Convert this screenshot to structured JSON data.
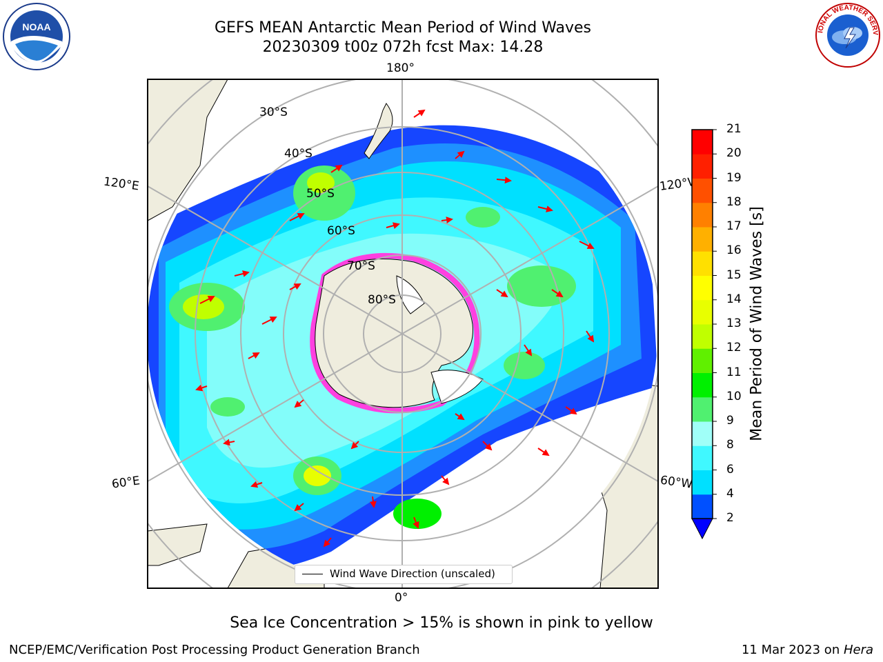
{
  "title": {
    "line1": "GEFS MEAN Antarctic Mean Period of Wind Waves",
    "line2": "20230309 t00z 072h fcst   Max: 14.28"
  },
  "logos": {
    "left": {
      "text": "NOAA",
      "icon": "noaa-logo"
    },
    "right": {
      "text": "NATIONAL WEATHER SERVICE",
      "icon": "nws-logo"
    }
  },
  "map": {
    "projection": "south-polar-stereographic",
    "lon_labels": {
      "top": "180°",
      "bottom": "0°",
      "upper_left": "120°E",
      "lower_left": "60°E",
      "upper_right": "120°W",
      "lower_right": "60°W"
    },
    "lat_labels": [
      "30°S",
      "40°S",
      "50°S",
      "60°S",
      "70°S",
      "80°S"
    ],
    "legend": "Wind Wave Direction (unscaled)"
  },
  "colorbar": {
    "label": "Mean Period of Wind Waves [s]",
    "ticks": [
      "2",
      "4",
      "6",
      "8",
      "9",
      "10",
      "11",
      "12",
      "13",
      "14",
      "15",
      "16",
      "17",
      "18",
      "19",
      "20",
      "21"
    ],
    "colors": [
      "#0050ff",
      "#00e0ff",
      "#40f8ff",
      "#a0fff8",
      "#50f070",
      "#00f000",
      "#60f000",
      "#c0ff00",
      "#e8ff00",
      "#ffff00",
      "#ffe000",
      "#ffb000",
      "#ff8000",
      "#ff5000",
      "#ff2000",
      "#ff0000"
    ],
    "extend_color": "#0000ff"
  },
  "ice_note": "Sea Ice Concentration > 15% is shown in pink to yellow",
  "footer": {
    "left": "NCEP/EMC/Verification Post Processing Product Generation Branch",
    "right_date": "11 Mar 2023 on ",
    "right_host": "Hera"
  }
}
